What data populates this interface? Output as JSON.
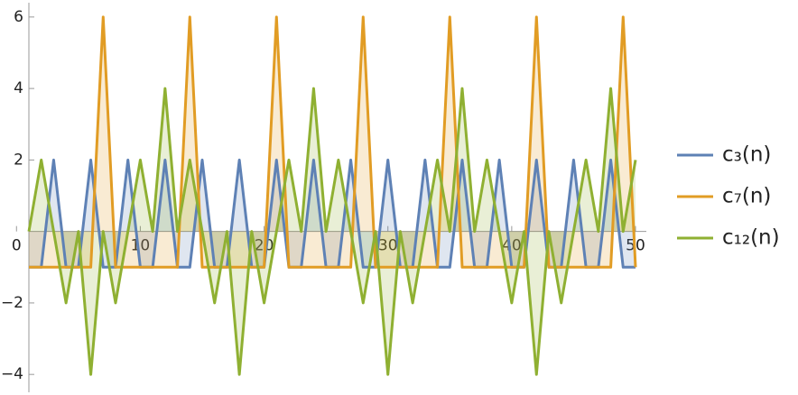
{
  "chart_data": {
    "type": "line",
    "x": [
      1,
      2,
      3,
      4,
      5,
      6,
      7,
      8,
      9,
      10,
      11,
      12,
      13,
      14,
      15,
      16,
      17,
      18,
      19,
      20,
      21,
      22,
      23,
      24,
      25,
      26,
      27,
      28,
      29,
      30,
      31,
      32,
      33,
      34,
      35,
      36,
      37,
      38,
      39,
      40,
      41,
      42,
      43,
      44,
      45,
      46,
      47,
      48,
      49,
      50
    ],
    "series": [
      {
        "name": "c₃(n)",
        "color": "#5e81b5",
        "values": [
          -1,
          -1,
          2,
          -1,
          -1,
          2,
          -1,
          -1,
          2,
          -1,
          -1,
          2,
          -1,
          -1,
          2,
          -1,
          -1,
          2,
          -1,
          -1,
          2,
          -1,
          -1,
          2,
          -1,
          -1,
          2,
          -1,
          -1,
          2,
          -1,
          -1,
          2,
          -1,
          -1,
          2,
          -1,
          -1,
          2,
          -1,
          -1,
          2,
          -1,
          -1,
          2,
          -1,
          -1,
          2,
          -1,
          -1
        ]
      },
      {
        "name": "c₇(n)",
        "color": "#e19c24",
        "values": [
          -1,
          -1,
          -1,
          -1,
          -1,
          -1,
          6,
          -1,
          -1,
          -1,
          -1,
          -1,
          -1,
          6,
          -1,
          -1,
          -1,
          -1,
          -1,
          -1,
          6,
          -1,
          -1,
          -1,
          -1,
          -1,
          -1,
          6,
          -1,
          -1,
          -1,
          -1,
          -1,
          -1,
          6,
          -1,
          -1,
          -1,
          -1,
          -1,
          -1,
          6,
          -1,
          -1,
          -1,
          -1,
          -1,
          -1,
          6,
          -1
        ]
      },
      {
        "name": "c₁₂(n)",
        "color": "#8fb032",
        "values": [
          0,
          2,
          0,
          -2,
          0,
          -4,
          0,
          -2,
          0,
          2,
          0,
          4,
          0,
          2,
          0,
          -2,
          0,
          -4,
          0,
          -2,
          0,
          2,
          0,
          4,
          0,
          2,
          0,
          -2,
          0,
          -4,
          0,
          -2,
          0,
          2,
          0,
          4,
          0,
          2,
          0,
          -2,
          0,
          -4,
          0,
          -2,
          0,
          2,
          0,
          4,
          0,
          2
        ]
      }
    ],
    "xlim": [
      1,
      50
    ],
    "xticks": [
      0,
      10,
      20,
      30,
      40,
      50
    ],
    "ylim": [
      -4.5,
      6.4
    ],
    "yticks": [
      {
        "value": -4,
        "label": "−4"
      },
      {
        "value": -2,
        "label": "−2"
      },
      2,
      4,
      6
    ],
    "fill": "axis",
    "legend": "right"
  }
}
